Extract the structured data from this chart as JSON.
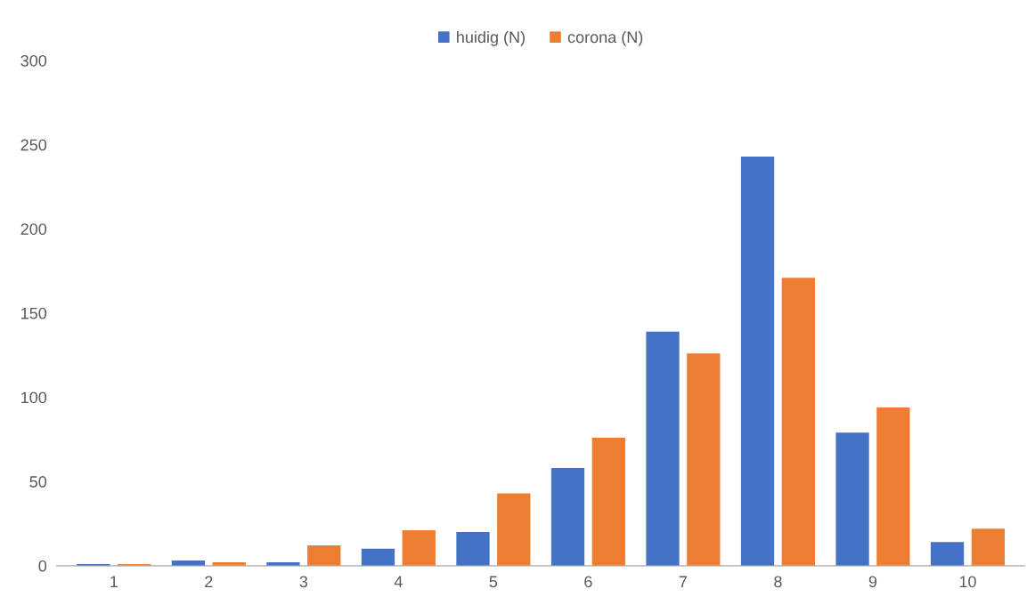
{
  "chart_data": {
    "type": "bar",
    "categories": [
      "1",
      "2",
      "3",
      "4",
      "5",
      "6",
      "7",
      "8",
      "9",
      "10"
    ],
    "series": [
      {
        "name": "huidig (N)",
        "color": "#4472c4",
        "values": [
          1,
          3,
          2,
          10,
          20,
          58,
          139,
          243,
          79,
          14
        ]
      },
      {
        "name": "corona (N)",
        "color": "#ed7d31",
        "values": [
          1,
          2,
          12,
          21,
          43,
          76,
          126,
          171,
          94,
          22
        ]
      }
    ],
    "ylim": [
      0,
      300
    ],
    "yticks": [
      0,
      50,
      100,
      150,
      200,
      250,
      300
    ],
    "grid": false,
    "legend": "top"
  }
}
